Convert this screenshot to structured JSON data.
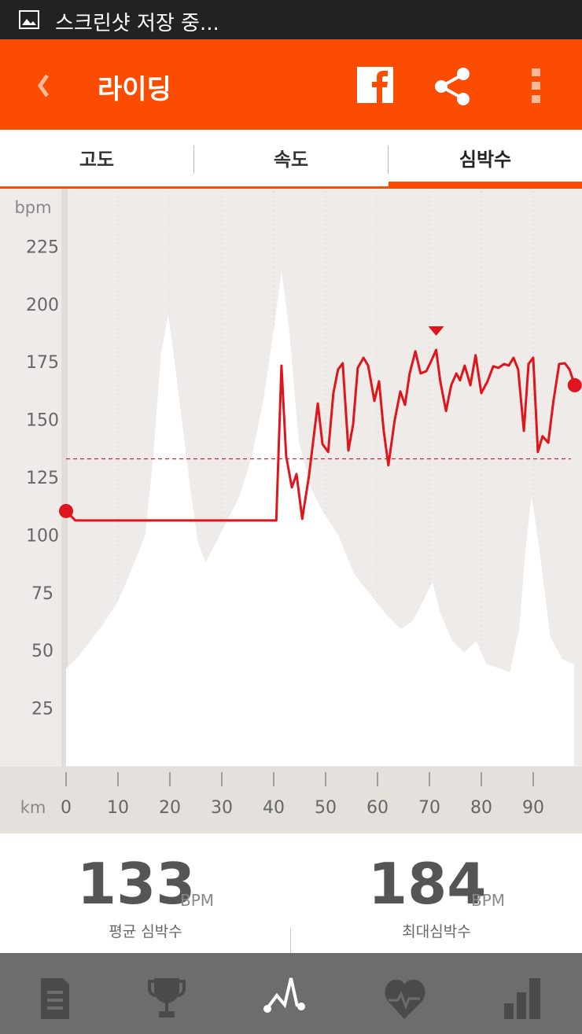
{
  "status_bar": {
    "text": "스크린샷 저장 중..."
  },
  "header": {
    "title": "라이딩"
  },
  "tabs": {
    "items": [
      "고도",
      "속도",
      "심박수"
    ],
    "active": 2
  },
  "chart_data": {
    "type": "line",
    "y_label": "bpm",
    "x_label": "km",
    "xlim": [
      0,
      99.4
    ],
    "xticks": [
      0,
      10,
      20,
      30,
      40,
      50,
      60,
      70,
      80,
      90
    ],
    "ylim": [
      0,
      249
    ],
    "yticks": [
      25,
      50,
      75,
      100,
      125,
      150,
      175,
      200,
      225
    ],
    "grid": true,
    "series": [
      {
        "kind": "area",
        "color": "#ffffff",
        "x": [
          0,
          2.4,
          4.7,
          7,
          10,
          12.9,
          15.3,
          16.8,
          18.3,
          19.7,
          20.9,
          22.4,
          23.9,
          25.4,
          26.9,
          28.9,
          31.2,
          33.5,
          35.8,
          38,
          40,
          41.5,
          43,
          44.8,
          47.1,
          49.4,
          52.4,
          55.5,
          58.5,
          61.5,
          64.5,
          66.8,
          69.1,
          70.6,
          72.1,
          74.4,
          76.7,
          79,
          81,
          83.6,
          85.5,
          87.3,
          88.5,
          89.7,
          91.2,
          93.3,
          95.6,
          97.9
        ],
        "values": [
          42.2,
          47.4,
          54.2,
          61,
          71.2,
          86.5,
          100.2,
          134.2,
          178.5,
          195.6,
          175.1,
          147.9,
          120.6,
          96.8,
          88.2,
          96.8,
          107,
          117.2,
          134.2,
          158.1,
          188.8,
          214.3,
          188.8,
          141.1,
          120.6,
          110.4,
          100.2,
          83.1,
          74.6,
          66.1,
          59.3,
          62.7,
          72.9,
          79.7,
          66.1,
          54.2,
          49.1,
          54.2,
          44,
          42.2,
          40.5,
          59.3,
          93.4,
          117.2,
          93.4,
          55.9,
          46.3,
          44
        ]
      },
      {
        "kind": "line",
        "color": "#e0141c",
        "x": [
          0,
          1.8,
          40.5,
          41.5,
          42.4,
          43.5,
          44.4,
          45.5,
          46.8,
          48.5,
          49.4,
          50.5,
          51.5,
          52.4,
          53.3,
          54.4,
          55.3,
          56.2,
          57.3,
          58.2,
          59.4,
          60.3,
          61.2,
          62.1,
          63.3,
          64.4,
          65.3,
          66.2,
          67.3,
          68.3,
          69.4,
          70.3,
          71.3,
          72.1,
          73.2,
          74.2,
          75.2,
          75.9,
          76.8,
          77.9,
          78.9,
          80,
          81.2,
          82.3,
          83.3,
          84.4,
          85.3,
          86.2,
          87.1,
          88.2,
          89.1,
          90,
          90.9,
          91.8,
          92.9,
          93.9,
          95,
          96.1,
          97,
          98
        ],
        "values": [
          110.4,
          106.3,
          106.3,
          173.4,
          134.2,
          120.6,
          126.4,
          107,
          125.7,
          157,
          139.4,
          136,
          161.5,
          171.7,
          174.4,
          136.6,
          147.9,
          172.4,
          176.8,
          173.4,
          158.1,
          166.6,
          145.1,
          130.2,
          149.6,
          162.2,
          156.4,
          170,
          179.6,
          170,
          171,
          175.1,
          180.2,
          166.6,
          153.7,
          164.9,
          170,
          167,
          173.4,
          164.9,
          177.9,
          161.5,
          166.6,
          173.1,
          172.4,
          174.1,
          173.4,
          176.8,
          171.7,
          145.1,
          174.1,
          176.8,
          136,
          142.8,
          140,
          158.1,
          174.1,
          174.4,
          171.7,
          164.9
        ]
      }
    ]
  },
  "stats": [
    {
      "value": 133,
      "unit": "BPM",
      "label": "평균 심박수"
    },
    {
      "value": 184,
      "unit": "BPM",
      "label": "최대심박수"
    }
  ]
}
